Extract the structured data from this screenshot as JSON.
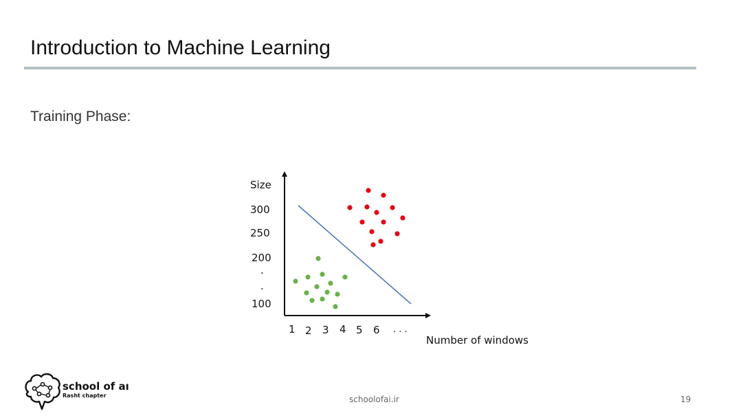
{
  "slide": {
    "title": "Introduction to Machine Learning",
    "section_heading": "Training Phase:"
  },
  "diagram": {
    "y_axis_label": "Size",
    "y_tick_labels": [
      "300",
      "250",
      "200",
      ".",
      ".",
      "100"
    ],
    "x_tick_labels": [
      "1",
      "2",
      "3",
      "4",
      "5",
      "6",
      ". . ."
    ],
    "x_axis_label": "Number of windows",
    "colors": {
      "class_a": "#e30613",
      "class_b": "#6ab04c",
      "boundary": "#4a76b5",
      "axis": "#111111"
    }
  },
  "footer": {
    "logo_name": "school of aı",
    "logo_subtitle": "Rasht chapter",
    "url": "schoolofai.ir",
    "page_number": "19"
  }
}
